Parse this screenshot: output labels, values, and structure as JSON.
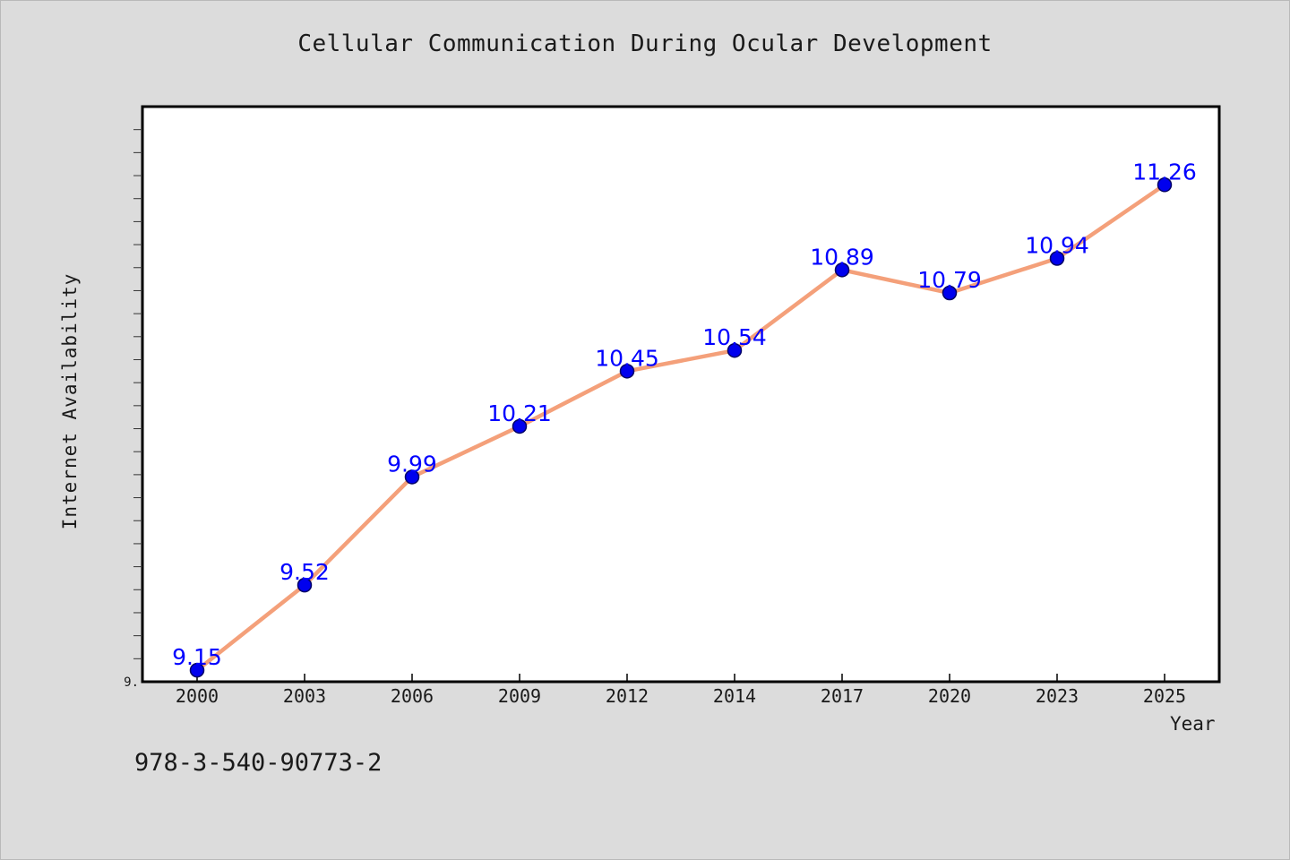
{
  "chart_data": {
    "type": "line",
    "title": "Cellular Communication During Ocular Development",
    "xlabel": "Year",
    "ylabel": "Internet Availability",
    "categories": [
      "2000",
      "2003",
      "2006",
      "2009",
      "2012",
      "2014",
      "2017",
      "2020",
      "2023",
      "2025"
    ],
    "series": [
      {
        "values": [
          9.15,
          9.52,
          9.99,
          10.21,
          10.45,
          10.54,
          10.89,
          10.79,
          10.94,
          11.26
        ]
      }
    ],
    "data_labels": [
      "9.15",
      "9.52",
      "9.99",
      "10.21",
      "10.45",
      "10.54",
      "10.89",
      "10.79",
      "10.94",
      "11.26"
    ],
    "ylim": [
      9.1,
      11.6
    ],
    "y_tick_label": "9.",
    "y_minor_tick_step": 0.1,
    "grid": false,
    "legend": "none",
    "colors": {
      "line": "#f4a07a",
      "marker": "#0000ee",
      "marker_edge": "#000066",
      "data_label": "#0000ff",
      "plot_background": "#ffffff",
      "page_background": "#dcdcdc"
    }
  },
  "footer_text": "978-3-540-90773-2"
}
